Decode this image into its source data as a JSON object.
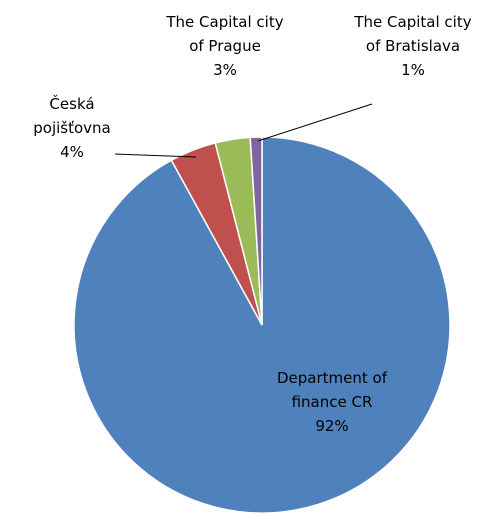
{
  "chart_data": {
    "type": "pie",
    "categories": [
      "Department of finance CR",
      "Česká pojišťovna",
      "The Capital city of Prague",
      "The Capital city of Bratislava"
    ],
    "values": [
      92,
      4,
      3,
      1
    ],
    "value_labels": [
      "92%",
      "4%",
      "3%",
      "1%"
    ],
    "colors": [
      "#4f81bd",
      "#c0504d",
      "#9bbb59",
      "#8064a2"
    ]
  }
}
